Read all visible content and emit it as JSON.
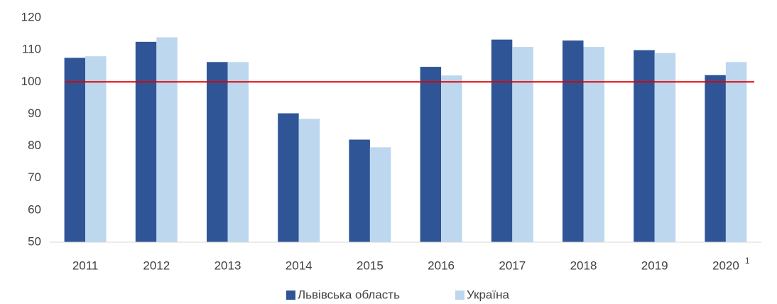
{
  "chart_data": {
    "type": "bar",
    "categories": [
      "2011",
      "2012",
      "2013",
      "2014",
      "2015",
      "2016",
      "2017",
      "2018",
      "2019",
      "2020"
    ],
    "footnote_mark": "1",
    "series": [
      {
        "name": "Львівська область",
        "color": "#2f5597",
        "values": [
          107.5,
          112.5,
          106.2,
          90.2,
          82.0,
          104.7,
          113.2,
          112.9,
          109.9,
          102.1
        ]
      },
      {
        "name": "Україна",
        "color": "#bdd7ee",
        "values": [
          108.0,
          113.9,
          106.2,
          88.5,
          79.6,
          102.0,
          110.9,
          110.9,
          109.0,
          106.2
        ]
      }
    ],
    "reference_line": {
      "value": 100,
      "color": "#e00000"
    },
    "ylim": [
      50,
      120
    ],
    "yticks": [
      50,
      60,
      70,
      80,
      90,
      100,
      110,
      120
    ],
    "grid": false,
    "legend": "bottom"
  }
}
